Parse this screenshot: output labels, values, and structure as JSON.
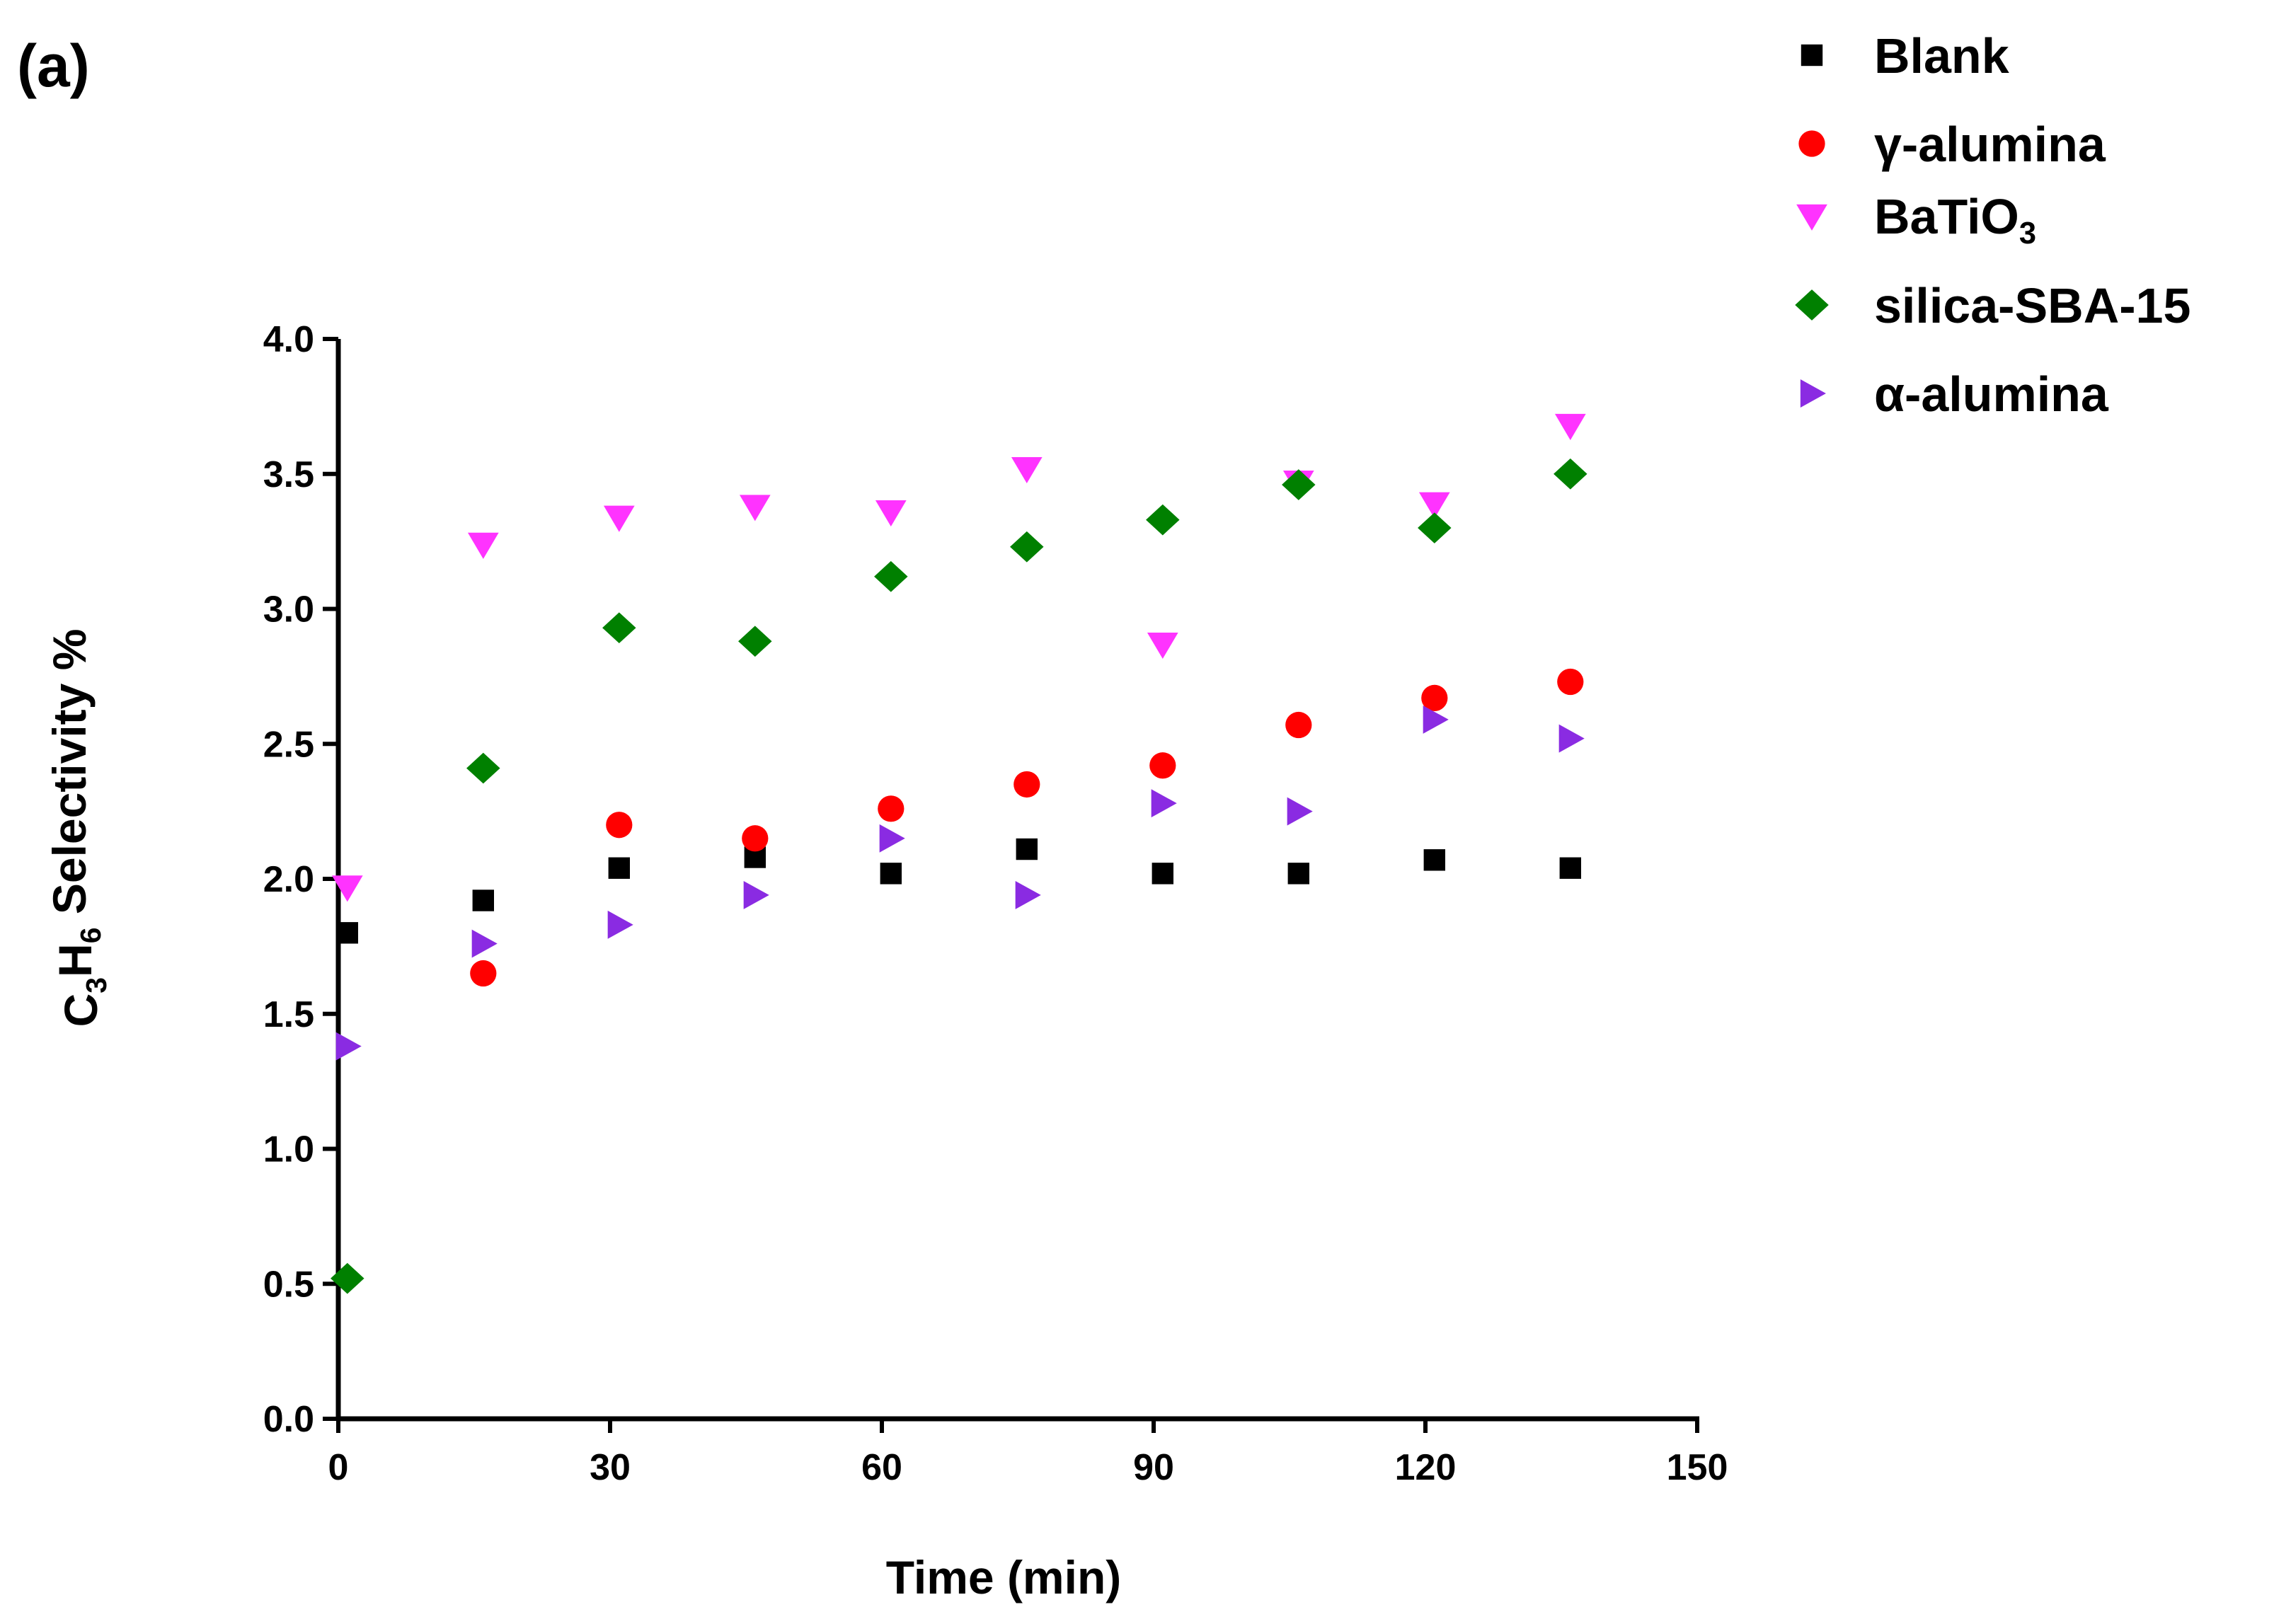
{
  "chart_data": {
    "type": "scatter",
    "panel_label": "(a)",
    "xlabel": "Time (min)",
    "ylabel": {
      "parts": [
        {
          "text": "C",
          "sub": false
        },
        {
          "text": "3",
          "sub": true
        },
        {
          "text": "H",
          "sub": false
        },
        {
          "text": "6",
          "sub": true
        },
        {
          "text": " Selectivity %",
          "sub": false
        }
      ]
    },
    "xlim": [
      0,
      150
    ],
    "ylim": [
      0,
      4.0
    ],
    "xticks": [
      "0",
      "30",
      "60",
      "90",
      "120",
      "150"
    ],
    "yticks": [
      "0.0",
      "0.5",
      "1.0",
      "1.5",
      "2.0",
      "2.5",
      "3.0",
      "3.5",
      "4.0"
    ],
    "grid": false,
    "legend_position": "top-right",
    "series": [
      {
        "name": "Blank",
        "name_parts": [
          {
            "text": "Blank",
            "sub": false
          }
        ],
        "marker": "square",
        "color": "#000000",
        "x": [
          1,
          16,
          31,
          46,
          61,
          76,
          91,
          106,
          121,
          136
        ],
        "y": [
          1.8,
          1.92,
          2.04,
          2.08,
          2.02,
          2.11,
          2.02,
          2.02,
          2.07,
          2.04
        ]
      },
      {
        "name": "γ-alumina",
        "name_parts": [
          {
            "text": "γ-alumina",
            "sub": false
          }
        ],
        "marker": "circle",
        "color": "#ff0000",
        "x": [
          16,
          31,
          46,
          61,
          76,
          91,
          106,
          121,
          136
        ],
        "y": [
          1.65,
          2.2,
          2.15,
          2.26,
          2.35,
          2.42,
          2.57,
          2.67,
          2.73
        ]
      },
      {
        "name": "BaTiO3",
        "name_parts": [
          {
            "text": "BaTiO",
            "sub": false
          },
          {
            "text": "3",
            "sub": true
          }
        ],
        "marker": "triangle-down",
        "color": "#ff33ff",
        "x": [
          1,
          16,
          31,
          46,
          61,
          76,
          91,
          106,
          121,
          136
        ],
        "y": [
          1.97,
          3.24,
          3.34,
          3.38,
          3.36,
          3.52,
          2.87,
          3.47,
          3.39,
          3.68
        ]
      },
      {
        "name": "silica-SBA-15",
        "name_parts": [
          {
            "text": "silica-SBA-15",
            "sub": false
          }
        ],
        "marker": "diamond",
        "color": "#008000",
        "x": [
          1,
          16,
          31,
          46,
          61,
          76,
          91,
          106,
          121,
          136
        ],
        "y": [
          0.52,
          2.41,
          2.93,
          2.88,
          3.12,
          3.23,
          3.33,
          3.46,
          3.3,
          3.5
        ]
      },
      {
        "name": "α-alumina",
        "name_parts": [
          {
            "text": "α-alumina",
            "sub": false
          }
        ],
        "marker": "triangle-right",
        "color": "#8a2be2",
        "x": [
          1,
          16,
          31,
          46,
          61,
          76,
          91,
          106,
          121,
          136
        ],
        "y": [
          1.38,
          1.76,
          1.83,
          1.94,
          2.15,
          1.94,
          2.28,
          2.25,
          2.59,
          2.52
        ]
      }
    ]
  }
}
